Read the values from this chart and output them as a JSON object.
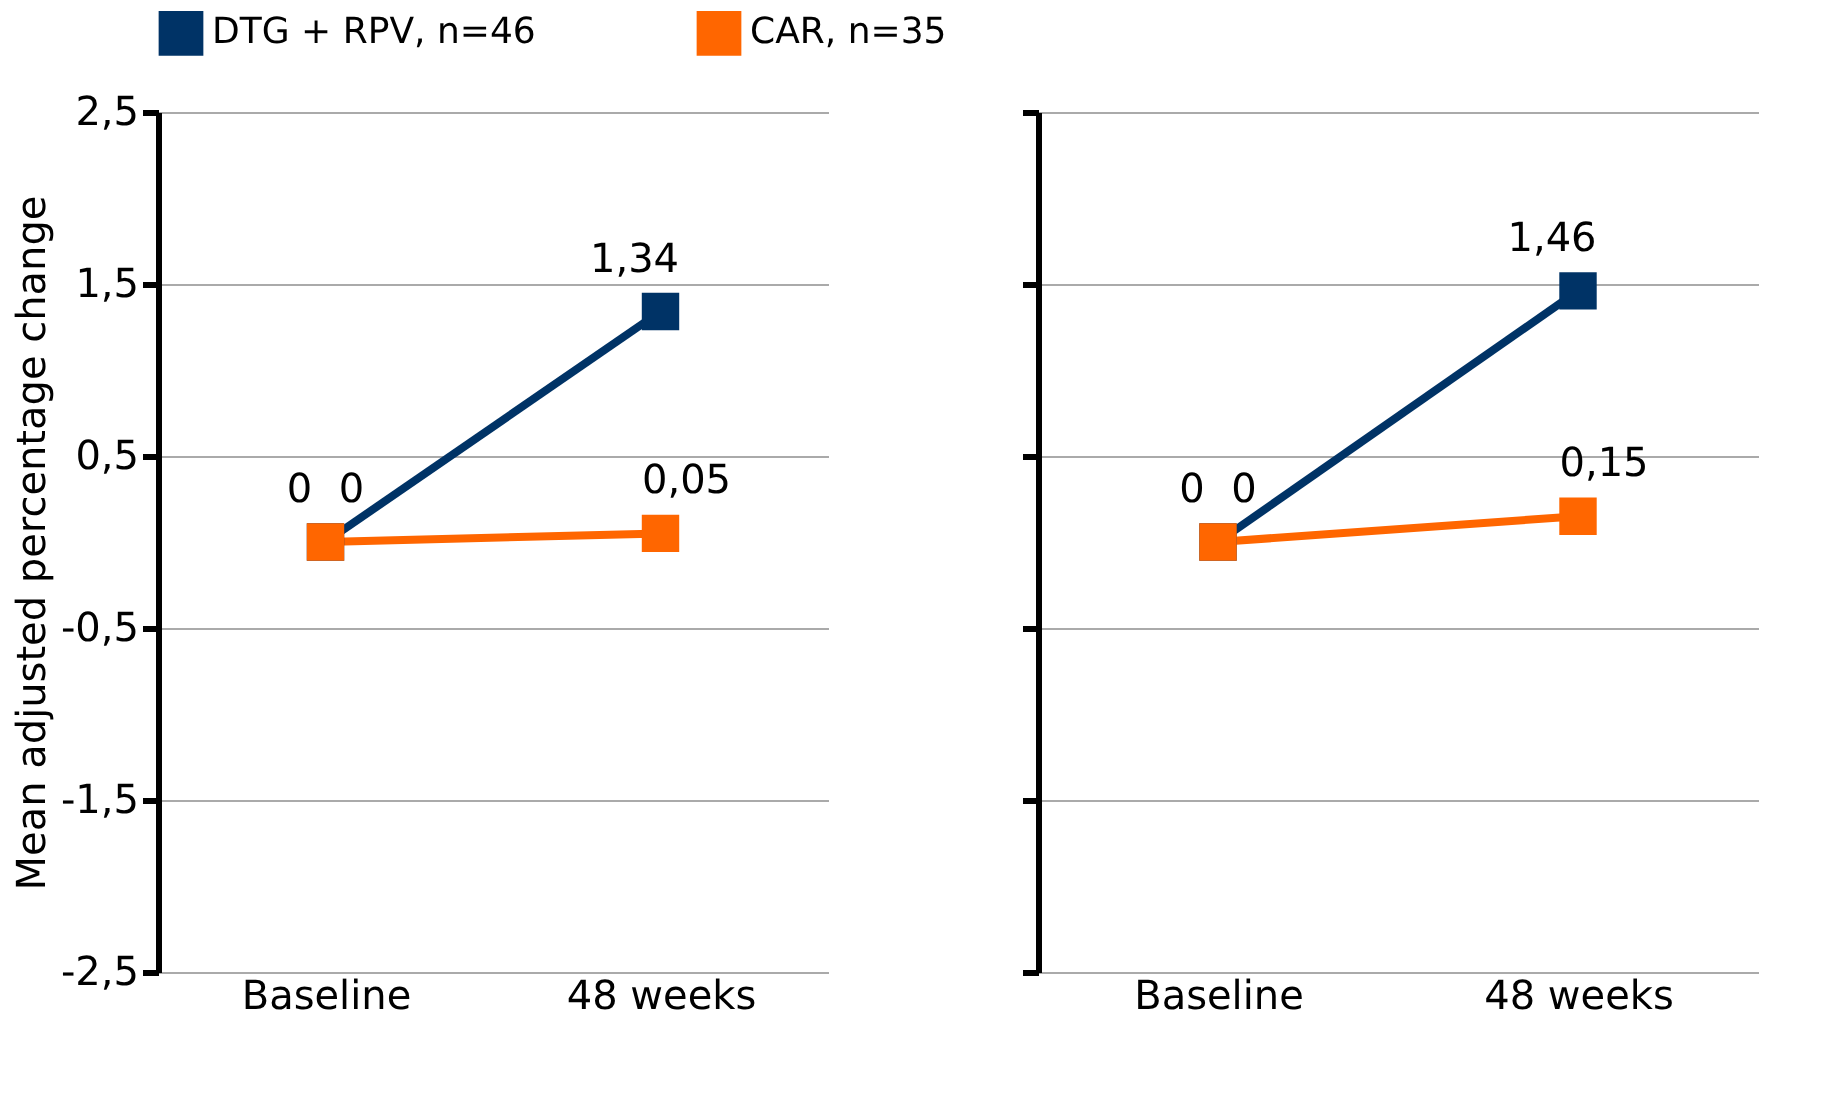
{
  "chart_data": [
    {
      "type": "line",
      "ylabel": "Mean adjusted percentage change",
      "categories": [
        "Baseline",
        "48 weeks"
      ],
      "ylim": [
        -2.5,
        2.5
      ],
      "yticks": [
        {
          "value": -2.5,
          "label": "-2,5"
        },
        {
          "value": -1.5,
          "label": "-1,5"
        },
        {
          "value": -0.5,
          "label": "-0,5"
        },
        {
          "value": 0.5,
          "label": "0,5"
        },
        {
          "value": 1.5,
          "label": "1,5"
        },
        {
          "value": 2.5,
          "label": "2,5"
        }
      ],
      "grid": "y",
      "legend": "top",
      "marker": "square",
      "line_style": "solid",
      "series": [
        {
          "name": "DTG + RPV, n=46",
          "color": "#003366",
          "values": [
            0,
            1.34
          ],
          "value_labels": [
            "0",
            "1,34"
          ]
        },
        {
          "name": "CAR, n=35",
          "color": "#ff6600",
          "values": [
            0,
            0.05
          ],
          "value_labels": [
            "0",
            "0,05"
          ]
        }
      ]
    },
    {
      "type": "line",
      "categories": [
        "Baseline",
        "48 weeks"
      ],
      "ylim": [
        -2.5,
        2.5
      ],
      "yticks": [
        {
          "value": -2.5,
          "label": null
        },
        {
          "value": -1.5,
          "label": null
        },
        {
          "value": -0.5,
          "label": null
        },
        {
          "value": 0.5,
          "label": null
        },
        {
          "value": 1.5,
          "label": null
        },
        {
          "value": 2.5,
          "label": null
        }
      ],
      "grid": "y",
      "marker": "square",
      "line_style": "solid",
      "tick_labels": "x",
      "series": [
        {
          "name": "DTG + RPV, n=46",
          "color": "#003366",
          "values": [
            0,
            1.46
          ],
          "value_labels": [
            "0",
            "1,46"
          ]
        },
        {
          "name": "CAR, n=35",
          "color": "#ff6600",
          "values": [
            0,
            0.15
          ],
          "value_labels": [
            "0",
            "0,15"
          ]
        }
      ]
    }
  ]
}
